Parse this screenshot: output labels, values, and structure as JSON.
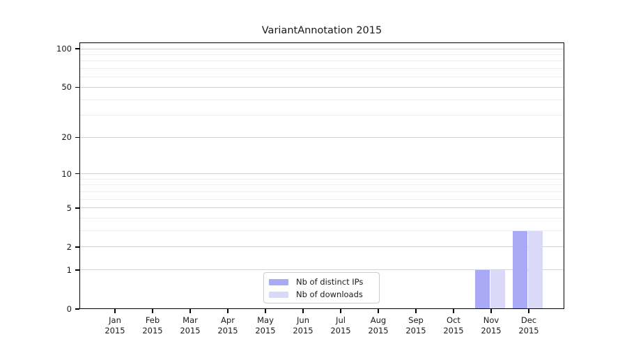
{
  "chart_data": {
    "type": "bar",
    "title": "VariantAnnotation 2015",
    "categories": [
      "Jan",
      "Feb",
      "Mar",
      "Apr",
      "May",
      "Jun",
      "Jul",
      "Aug",
      "Sep",
      "Oct",
      "Nov",
      "Dec"
    ],
    "x_tick_second_line": "2015",
    "series": [
      {
        "name": "Nb of distinct IPs",
        "color": "#a9a9f6",
        "values": [
          0,
          0,
          0,
          0,
          0,
          0,
          0,
          0,
          0,
          0,
          1,
          3
        ]
      },
      {
        "name": "Nb of downloads",
        "color": "#dadaf8",
        "values": [
          0,
          0,
          0,
          0,
          0,
          0,
          0,
          0,
          0,
          0,
          1,
          3
        ]
      }
    ],
    "y_axis": {
      "scale": "log10(1+y)",
      "major_ticks": [
        0,
        1,
        2,
        5,
        10,
        20,
        50,
        100
      ],
      "minor_gridlines": [
        3,
        4,
        6,
        7,
        8,
        9,
        30,
        40,
        60,
        70,
        80,
        90
      ],
      "top_value": 112
    },
    "legend_position": "lower center",
    "grid": "horizontal",
    "colors": {
      "major_grid": "#d2d2d2",
      "minor_grid": "#ececec",
      "frame": "#000000",
      "background": "#ffffff",
      "text": "#1a1a1a"
    }
  }
}
